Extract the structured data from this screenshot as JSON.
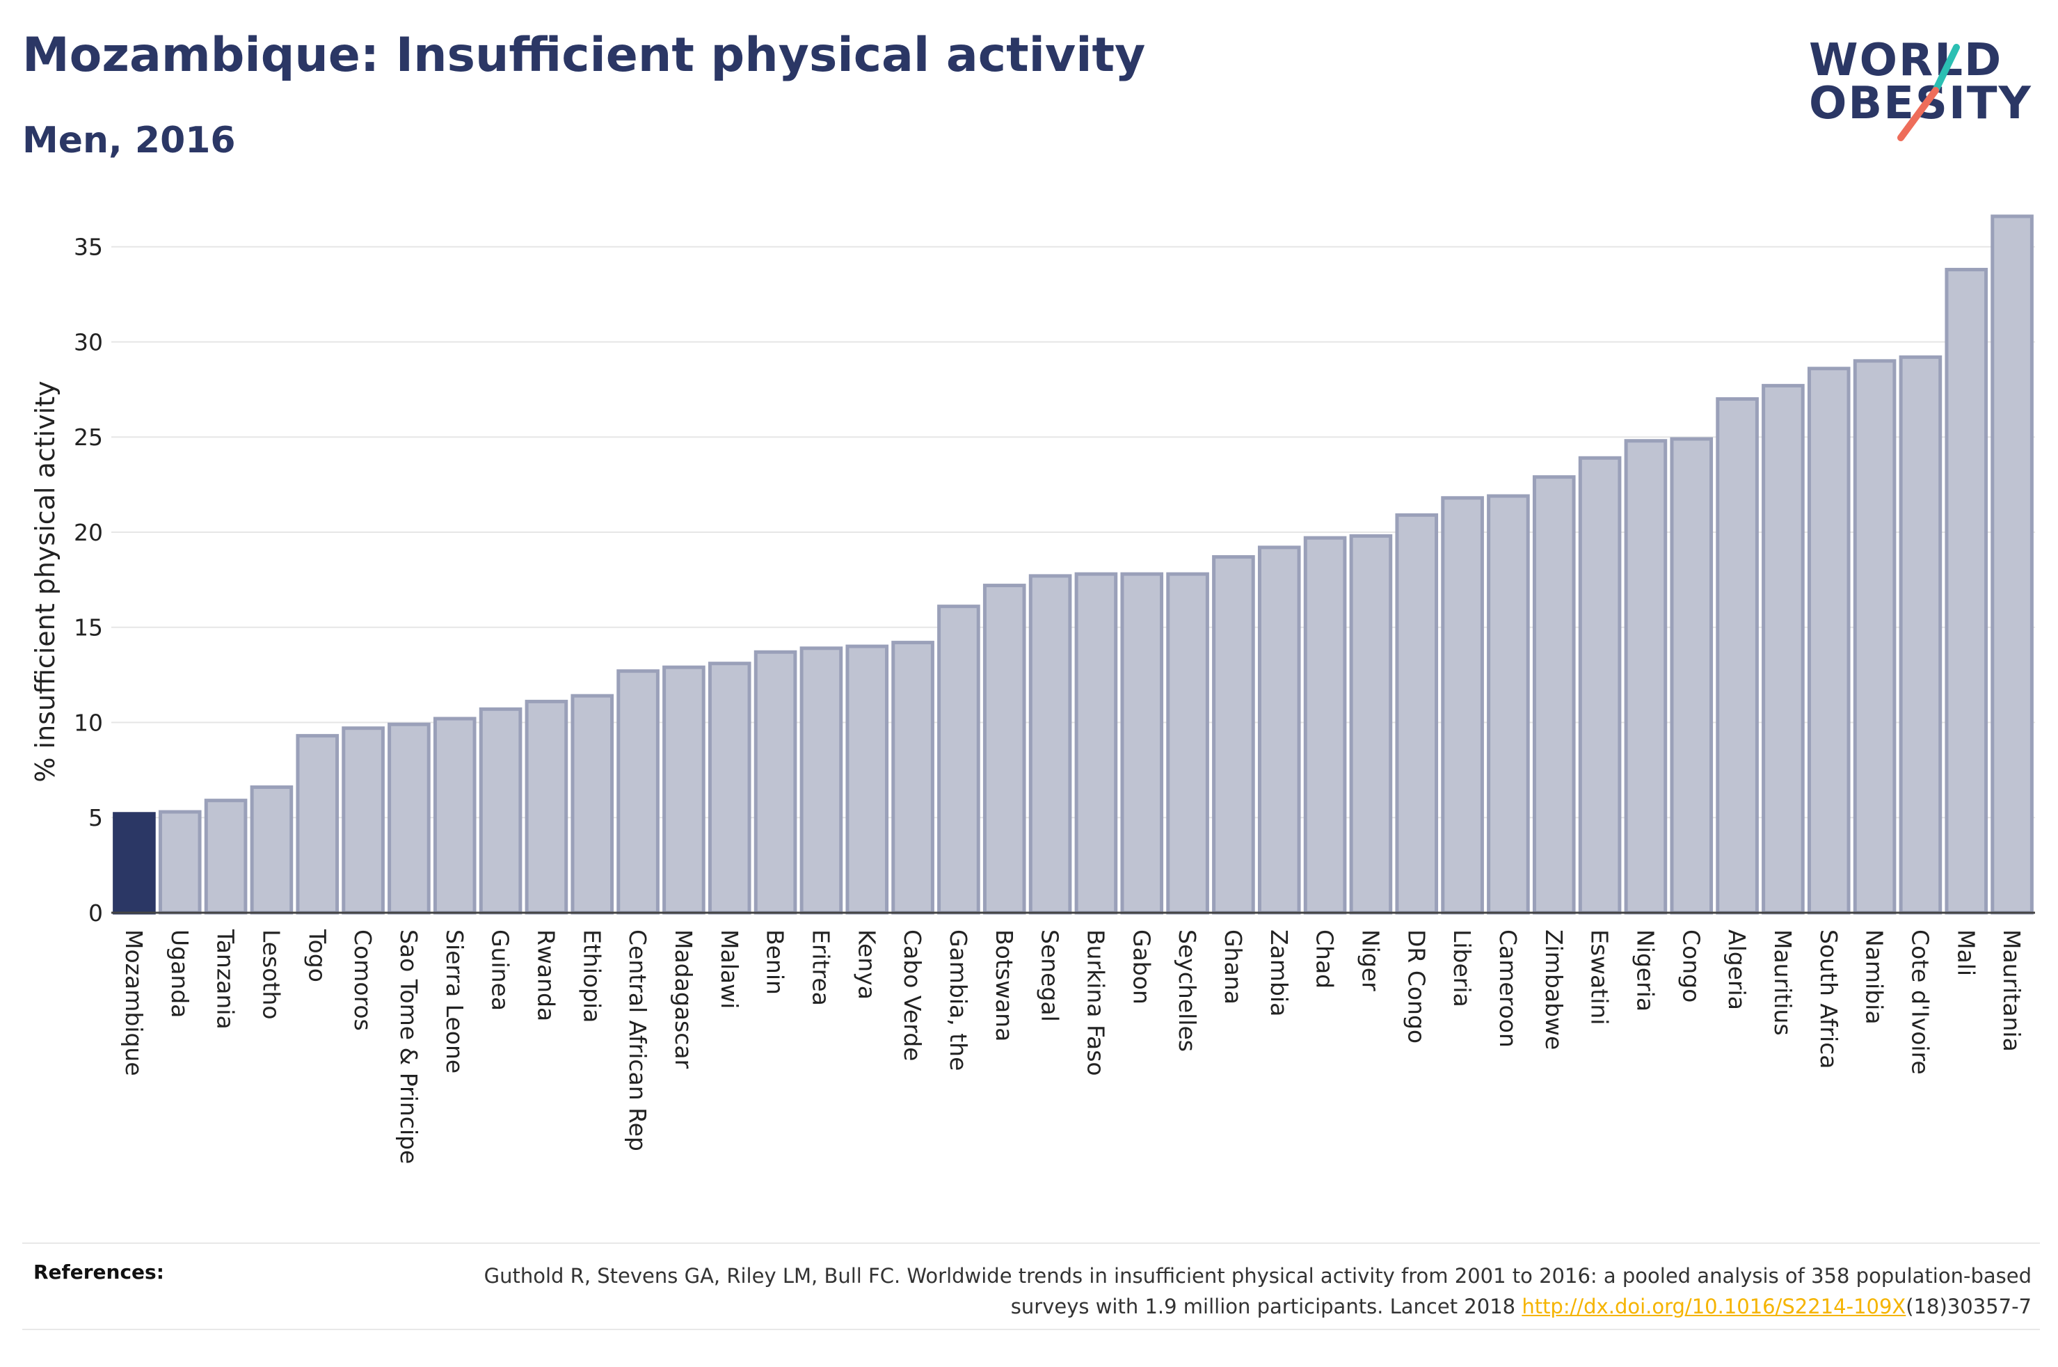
{
  "header": {
    "title": "Mozambique: Insufficient physical activity",
    "subtitle": "Men, 2016"
  },
  "logo": {
    "line1": "WORLD",
    "line2": "OBESITY",
    "slash_colors": [
      "#2bbfb3",
      "#ee6d5a"
    ]
  },
  "colors": {
    "highlight": "#2b3765",
    "bar_fill": "#bfc3d2",
    "bar_stroke": "#9aa0b9",
    "grid": "#e6e6e6"
  },
  "chart_data": {
    "type": "bar",
    "ylabel": "% insufficient physical activity",
    "ylim": [
      0,
      37
    ],
    "yticks": [
      0,
      5,
      10,
      15,
      20,
      25,
      30,
      35
    ],
    "grid": true,
    "highlight_category": "Mozambique",
    "categories": [
      "Mozambique",
      "Uganda",
      "Tanzania",
      "Lesotho",
      "Togo",
      "Comoros",
      "Sao Tome & Principe",
      "Sierra Leone",
      "Guinea",
      "Rwanda",
      "Ethiopia",
      "Central African Rep",
      "Madagascar",
      "Malawi",
      "Benin",
      "Eritrea",
      "Kenya",
      "Cabo Verde",
      "Gambia, the",
      "Botswana",
      "Senegal",
      "Burkina Faso",
      "Gabon",
      "Seychelles",
      "Ghana",
      "Zambia",
      "Chad",
      "Niger",
      "DR Congo",
      "Liberia",
      "Cameroon",
      "Zimbabwe",
      "Eswatini",
      "Nigeria",
      "Congo",
      "Algeria",
      "Mauritius",
      "South Africa",
      "Namibia",
      "Cote d'Ivoire",
      "Mali",
      "Mauritania"
    ],
    "values": [
      5.2,
      5.3,
      5.9,
      6.6,
      9.3,
      9.7,
      9.9,
      10.2,
      10.7,
      11.1,
      11.4,
      12.7,
      12.9,
      13.1,
      13.7,
      13.9,
      14.0,
      14.2,
      16.1,
      17.2,
      17.7,
      17.8,
      17.8,
      17.8,
      18.7,
      19.2,
      19.7,
      19.8,
      20.9,
      21.8,
      21.9,
      22.9,
      23.9,
      24.8,
      24.9,
      27.0,
      27.7,
      28.6,
      29.0,
      29.2,
      33.8,
      36.6
    ]
  },
  "references": {
    "label": "References:",
    "text_part1": "Guthold R, Stevens GA, Riley LM, Bull FC. Worldwide trends in insufficient physical activity from 2001 to 2016: a pooled analysis of 358 population-based surveys with 1.9 million participants. Lancet 2018 ",
    "link": "http://dx.doi.org/10.1016/S2214-109X",
    "text_part2": "(18)30357-7"
  }
}
